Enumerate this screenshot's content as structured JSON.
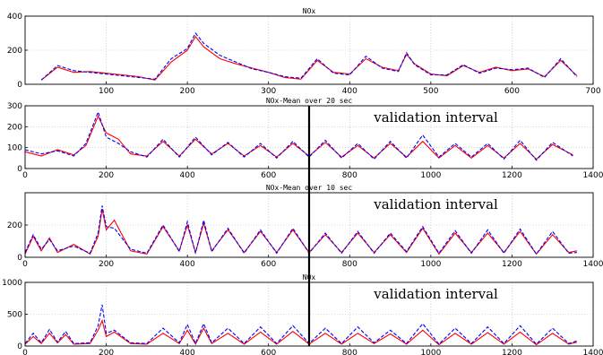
{
  "chart_data": [
    {
      "type": "line",
      "title": "NOx",
      "x_range": [
        0,
        700
      ],
      "ylim": [
        0,
        400
      ],
      "x_ticks": [
        "100",
        "200",
        "300",
        "400",
        "500",
        "600",
        "700"
      ],
      "y_ticks": [
        "0",
        "200",
        "400"
      ],
      "grid": true,
      "annotation": "",
      "validation_line_x": null,
      "series": [
        {
          "color": "#ff0000",
          "style": "solid",
          "x": [
            20,
            40,
            60,
            80,
            100,
            120,
            140,
            160,
            180,
            200,
            210,
            220,
            240,
            260,
            280,
            300,
            320,
            340,
            360,
            380,
            400,
            420,
            440,
            460,
            470,
            480,
            500,
            520,
            540,
            560,
            580,
            600,
            620,
            640,
            660,
            680
          ],
          "y": [
            25,
            100,
            70,
            75,
            65,
            55,
            45,
            25,
            130,
            200,
            280,
            220,
            150,
            120,
            95,
            70,
            40,
            30,
            140,
            70,
            60,
            150,
            100,
            80,
            175,
            120,
            60,
            50,
            110,
            70,
            100,
            80,
            90,
            45,
            140,
            50
          ]
        },
        {
          "color": "#0000ff",
          "style": "dashed",
          "x": [
            20,
            40,
            60,
            80,
            100,
            120,
            140,
            160,
            180,
            200,
            210,
            220,
            240,
            260,
            280,
            300,
            320,
            340,
            360,
            380,
            400,
            420,
            440,
            460,
            470,
            480,
            500,
            520,
            540,
            560,
            580,
            600,
            620,
            640,
            660,
            680
          ],
          "y": [
            25,
            110,
            80,
            70,
            60,
            50,
            40,
            30,
            150,
            210,
            300,
            240,
            170,
            130,
            90,
            70,
            45,
            35,
            150,
            65,
            55,
            165,
            95,
            75,
            185,
            115,
            55,
            55,
            115,
            65,
            95,
            85,
            95,
            40,
            150,
            45
          ]
        }
      ]
    },
    {
      "type": "line",
      "title": "NOx-Mean over 20 sec",
      "x_range": [
        0,
        1400
      ],
      "ylim": [
        0,
        300
      ],
      "x_ticks": [
        "0",
        "200",
        "400",
        "600",
        "800",
        "1000",
        "1200",
        "1400"
      ],
      "y_ticks": [
        "0",
        "100",
        "200",
        "300"
      ],
      "grid": true,
      "annotation": "validation interval",
      "validation_line_x": 700,
      "series": [
        {
          "color": "#ff0000",
          "style": "solid",
          "x": [
            0,
            40,
            80,
            120,
            150,
            180,
            200,
            230,
            260,
            300,
            340,
            380,
            420,
            460,
            500,
            540,
            580,
            620,
            660,
            700,
            740,
            780,
            820,
            860,
            900,
            940,
            980,
            1020,
            1060,
            1100,
            1140,
            1180,
            1220,
            1260,
            1300,
            1350
          ],
          "y": [
            80,
            60,
            90,
            65,
            110,
            250,
            170,
            140,
            70,
            60,
            130,
            60,
            140,
            70,
            120,
            60,
            110,
            55,
            120,
            60,
            125,
            55,
            110,
            50,
            120,
            55,
            130,
            50,
            110,
            50,
            110,
            50,
            120,
            45,
            115,
            65
          ]
        },
        {
          "color": "#0000ff",
          "style": "dashed",
          "x": [
            0,
            40,
            80,
            120,
            150,
            180,
            200,
            230,
            260,
            300,
            340,
            380,
            420,
            460,
            500,
            540,
            580,
            620,
            660,
            700,
            740,
            780,
            820,
            860,
            900,
            940,
            980,
            1020,
            1060,
            1100,
            1140,
            1180,
            1220,
            1260,
            1300,
            1350
          ],
          "y": [
            90,
            70,
            85,
            60,
            120,
            270,
            150,
            120,
            80,
            55,
            140,
            55,
            150,
            65,
            125,
            55,
            120,
            50,
            130,
            55,
            135,
            50,
            120,
            45,
            130,
            50,
            160,
            55,
            120,
            55,
            120,
            45,
            135,
            40,
            125,
            60
          ]
        }
      ]
    },
    {
      "type": "line",
      "title": "NOx-Mean over 10 sec",
      "x_range": [
        0,
        1400
      ],
      "ylim": [
        0,
        400
      ],
      "x_ticks": [
        "0",
        "200",
        "400",
        "600",
        "800",
        "1000",
        "1200",
        "1400"
      ],
      "y_ticks": [
        "0",
        "200"
      ],
      "grid": true,
      "annotation": "validation interval",
      "validation_line_x": 700,
      "series": [
        {
          "color": "#ff0000",
          "style": "solid",
          "x": [
            0,
            20,
            40,
            60,
            80,
            120,
            160,
            180,
            190,
            200,
            220,
            260,
            300,
            340,
            380,
            400,
            420,
            440,
            460,
            500,
            540,
            580,
            620,
            660,
            700,
            740,
            780,
            820,
            860,
            900,
            940,
            980,
            1020,
            1060,
            1100,
            1140,
            1180,
            1220,
            1260,
            1300,
            1340,
            1360
          ],
          "y": [
            20,
            130,
            40,
            120,
            30,
            80,
            20,
            130,
            300,
            170,
            230,
            40,
            20,
            190,
            40,
            200,
            30,
            210,
            40,
            170,
            30,
            160,
            30,
            170,
            30,
            140,
            30,
            150,
            30,
            140,
            30,
            180,
            20,
            150,
            30,
            150,
            30,
            160,
            20,
            140,
            30,
            40
          ]
        },
        {
          "color": "#0000ff",
          "style": "dashed",
          "x": [
            0,
            20,
            40,
            60,
            80,
            120,
            160,
            180,
            190,
            200,
            220,
            260,
            300,
            340,
            380,
            400,
            420,
            440,
            460,
            500,
            540,
            580,
            620,
            660,
            700,
            740,
            780,
            820,
            860,
            900,
            940,
            980,
            1020,
            1060,
            1100,
            1140,
            1180,
            1220,
            1260,
            1300,
            1340,
            1360
          ],
          "y": [
            30,
            140,
            50,
            110,
            40,
            70,
            25,
            150,
            320,
            190,
            180,
            50,
            25,
            200,
            35,
            220,
            25,
            230,
            35,
            180,
            25,
            170,
            25,
            180,
            25,
            150,
            25,
            160,
            25,
            150,
            35,
            190,
            25,
            165,
            25,
            170,
            25,
            175,
            20,
            160,
            25,
            30
          ]
        }
      ]
    },
    {
      "type": "line",
      "title": "NOx",
      "x_range": [
        0,
        1400
      ],
      "ylim": [
        0,
        1000
      ],
      "x_ticks": [
        "0",
        "200",
        "400",
        "600",
        "800",
        "1000",
        "1200",
        "1400"
      ],
      "y_ticks": [
        "0",
        "500",
        "1000"
      ],
      "grid": true,
      "annotation": "validation interval",
      "validation_line_x": 700,
      "series": [
        {
          "color": "#ff0000",
          "style": "solid",
          "x": [
            0,
            20,
            40,
            60,
            80,
            100,
            120,
            160,
            180,
            190,
            200,
            220,
            260,
            300,
            340,
            380,
            400,
            420,
            440,
            460,
            500,
            540,
            580,
            620,
            660,
            700,
            740,
            780,
            820,
            860,
            900,
            940,
            980,
            1020,
            1060,
            1100,
            1140,
            1180,
            1220,
            1260,
            1300,
            1340,
            1360
          ],
          "y": [
            30,
            150,
            40,
            200,
            50,
            180,
            30,
            40,
            250,
            400,
            150,
            220,
            40,
            30,
            200,
            40,
            250,
            30,
            280,
            40,
            200,
            30,
            220,
            30,
            230,
            30,
            200,
            30,
            200,
            40,
            190,
            30,
            250,
            20,
            200,
            30,
            210,
            30,
            220,
            20,
            200,
            30,
            60
          ]
        },
        {
          "color": "#0000ff",
          "style": "dashed",
          "x": [
            0,
            20,
            40,
            60,
            80,
            100,
            120,
            160,
            180,
            190,
            200,
            220,
            260,
            300,
            340,
            380,
            400,
            420,
            440,
            460,
            500,
            540,
            580,
            620,
            660,
            700,
            740,
            780,
            820,
            860,
            900,
            940,
            980,
            1020,
            1060,
            1100,
            1140,
            1180,
            1220,
            1260,
            1300,
            1340,
            1360
          ],
          "y": [
            40,
            200,
            50,
            260,
            60,
            230,
            40,
            50,
            320,
            650,
            200,
            250,
            50,
            40,
            280,
            50,
            340,
            40,
            350,
            50,
            280,
            40,
            300,
            40,
            320,
            40,
            280,
            40,
            300,
            50,
            250,
            40,
            350,
            30,
            280,
            40,
            300,
            40,
            320,
            30,
            280,
            40,
            80
          ]
        }
      ]
    }
  ]
}
